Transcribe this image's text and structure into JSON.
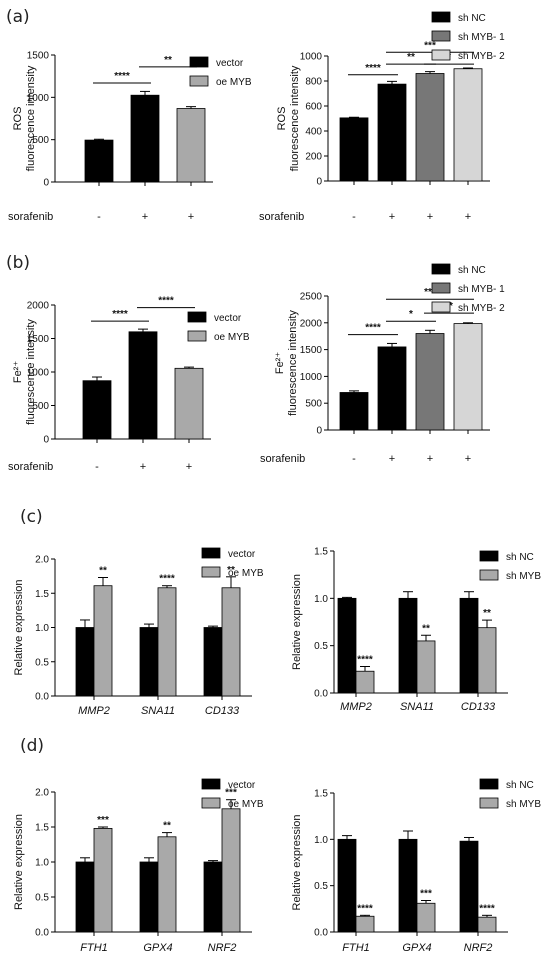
{
  "panels": [
    {
      "letter": "(a)"
    },
    {
      "letter": "(b)"
    },
    {
      "letter": "(c)"
    },
    {
      "letter": "(d)"
    }
  ],
  "chart_data": [
    {
      "id": "a-left",
      "type": "bar",
      "panel": "(a)",
      "ylabel_lines": [
        "ROS",
        "fluorescence intensity"
      ],
      "ylim": [
        0,
        1500
      ],
      "yticks": [
        0,
        500,
        1000,
        1500
      ],
      "treatment_label": "sorafenib",
      "treatment_signs": [
        "-",
        "+",
        "+"
      ],
      "bars": [
        {
          "value": 495,
          "err": 10,
          "color": "#000000"
        },
        {
          "value": 1025,
          "err": 45,
          "color": "#000000"
        },
        {
          "value": 868,
          "err": 22,
          "color": "#a9a9a9"
        }
      ],
      "legend": [
        {
          "name": "vector",
          "color": "#000000"
        },
        {
          "name": "oe MYB",
          "color": "#a9a9a9"
        }
      ],
      "sig": [
        {
          "a": 0,
          "b": 1,
          "label": "****",
          "level": 1170
        },
        {
          "a": 1,
          "b": 2,
          "label": "**",
          "level": 1360
        }
      ]
    },
    {
      "id": "a-right",
      "type": "bar",
      "panel": "(a)",
      "ylabel_lines": [
        "ROS",
        "fluorescence intensity"
      ],
      "ylim": [
        0,
        1000
      ],
      "yticks": [
        0,
        200,
        400,
        600,
        800,
        1000
      ],
      "treatment_label": "sorafenib",
      "treatment_signs": [
        "-",
        "+",
        "+",
        "+"
      ],
      "bars": [
        {
          "value": 505,
          "err": 5,
          "color": "#000000"
        },
        {
          "value": 775,
          "err": 22,
          "color": "#000000"
        },
        {
          "value": 860,
          "err": 15,
          "color": "#777777"
        },
        {
          "value": 898,
          "err": 6,
          "color": "#d6d6d6"
        }
      ],
      "legend": [
        {
          "name": "sh NC",
          "color": "#000000"
        },
        {
          "name": "sh MYB- 1",
          "color": "#777777"
        },
        {
          "name": "sh MYB- 2",
          "color": "#d6d6d6"
        }
      ],
      "sig": [
        {
          "a": 0,
          "b": 1,
          "label": "****",
          "level": 850
        },
        {
          "a": 1,
          "b": 2,
          "label": "**",
          "level": 935
        },
        {
          "a": 2,
          "b": 3,
          "label": "*",
          "level": 935
        },
        {
          "a": 1,
          "b": 3,
          "label": "***",
          "level": 1030
        }
      ]
    },
    {
      "id": "b-left",
      "type": "bar",
      "panel": "(b)",
      "ylabel_lines": [
        "Fe²⁺",
        "fluorescence intensity"
      ],
      "ylim": [
        0,
        2000
      ],
      "yticks": [
        0,
        500,
        1000,
        1500,
        2000
      ],
      "treatment_label": "sorafenib",
      "treatment_signs": [
        "-",
        "+",
        "+"
      ],
      "bars": [
        {
          "value": 870,
          "err": 55,
          "color": "#000000"
        },
        {
          "value": 1600,
          "err": 40,
          "color": "#000000"
        },
        {
          "value": 1055,
          "err": 18,
          "color": "#a9a9a9"
        }
      ],
      "legend": [
        {
          "name": "vector",
          "color": "#000000"
        },
        {
          "name": "oe MYB",
          "color": "#a9a9a9"
        }
      ],
      "sig": [
        {
          "a": 0,
          "b": 1,
          "label": "****",
          "level": 1760
        },
        {
          "a": 1,
          "b": 2,
          "label": "****",
          "level": 1960
        }
      ]
    },
    {
      "id": "b-right",
      "type": "bar",
      "panel": "(b)",
      "ylabel_lines": [
        "Fe²⁺",
        "fluorescence intensity"
      ],
      "ylim": [
        0,
        2500
      ],
      "yticks": [
        0,
        500,
        1000,
        1500,
        2000,
        2500
      ],
      "treatment_label": "sorafenib",
      "treatment_signs": [
        "-",
        "+",
        "+",
        "+"
      ],
      "bars": [
        {
          "value": 700,
          "err": 30,
          "color": "#000000"
        },
        {
          "value": 1550,
          "err": 65,
          "color": "#000000"
        },
        {
          "value": 1800,
          "err": 60,
          "color": "#777777"
        },
        {
          "value": 1985,
          "err": 15,
          "color": "#d6d6d6"
        }
      ],
      "legend": [
        {
          "name": "sh NC",
          "color": "#000000"
        },
        {
          "name": "sh MYB- 1",
          "color": "#777777"
        },
        {
          "name": "sh MYB- 2",
          "color": "#d6d6d6"
        }
      ],
      "sig": [
        {
          "a": 0,
          "b": 1,
          "label": "****",
          "level": 1780
        },
        {
          "a": 1,
          "b": 2,
          "label": "*",
          "level": 2030
        },
        {
          "a": 2,
          "b": 3,
          "label": "**",
          "level": 2180
        },
        {
          "a": 1,
          "b": 3,
          "label": "***",
          "level": 2440
        }
      ]
    },
    {
      "id": "c-left",
      "type": "bar",
      "panel": "(c)",
      "ylabel": "Relative expression",
      "ylim": [
        0,
        2.0
      ],
      "yticks": [
        "0.0",
        "0.5",
        "1.0",
        "1.5",
        "2.0"
      ],
      "categories": [
        "MMP2",
        "SNA11",
        "CD133"
      ],
      "series": [
        {
          "name": "vector",
          "color": "#000000",
          "values": [
            1.0,
            1.0,
            1.0
          ],
          "err": [
            0.11,
            0.05,
            0.02
          ]
        },
        {
          "name": "oe MYB",
          "color": "#a9a9a9",
          "values": [
            1.61,
            1.58,
            1.58
          ],
          "err": [
            0.12,
            0.03,
            0.16
          ]
        }
      ],
      "sig": [
        "**",
        "****",
        "**"
      ]
    },
    {
      "id": "c-right",
      "type": "bar",
      "panel": "(c)",
      "ylabel": "Relative expression",
      "ylim": [
        0,
        1.5
      ],
      "yticks": [
        "0.0",
        "0.5",
        "1.0",
        "1.5"
      ],
      "categories": [
        "MMP2",
        "SNA11",
        "CD133"
      ],
      "series": [
        {
          "name": "sh NC",
          "color": "#000000",
          "values": [
            1.0,
            1.0,
            1.0
          ],
          "err": [
            0.01,
            0.07,
            0.07
          ]
        },
        {
          "name": "sh MYB",
          "color": "#a9a9a9",
          "values": [
            0.23,
            0.55,
            0.69
          ],
          "err": [
            0.05,
            0.06,
            0.08
          ]
        }
      ],
      "sig": [
        "****",
        "**",
        "**"
      ]
    },
    {
      "id": "d-left",
      "type": "bar",
      "panel": "(d)",
      "ylabel": "Relative expression",
      "ylim": [
        0,
        2.0
      ],
      "yticks": [
        "0.0",
        "0.5",
        "1.0",
        "1.5",
        "2.0"
      ],
      "categories": [
        "FTH1",
        "GPX4",
        "NRF2"
      ],
      "series": [
        {
          "name": "vector",
          "color": "#000000",
          "values": [
            1.0,
            1.0,
            1.0
          ],
          "err": [
            0.06,
            0.06,
            0.02
          ]
        },
        {
          "name": "oe MYB",
          "color": "#a9a9a9",
          "values": [
            1.48,
            1.36,
            1.76
          ],
          "err": [
            0.02,
            0.06,
            0.13
          ]
        }
      ],
      "sig": [
        "***",
        "**",
        "***"
      ]
    },
    {
      "id": "d-right",
      "type": "bar",
      "panel": "(d)",
      "ylabel": "Relative expression",
      "ylim": [
        0,
        1.5
      ],
      "yticks": [
        "0.0",
        "0.5",
        "1.0",
        "1.5"
      ],
      "categories": [
        "FTH1",
        "GPX4",
        "NRF2"
      ],
      "series": [
        {
          "name": "sh NC",
          "color": "#000000",
          "values": [
            1.0,
            1.0,
            0.98
          ],
          "err": [
            0.04,
            0.09,
            0.04
          ]
        },
        {
          "name": "sh MYB",
          "color": "#a9a9a9",
          "values": [
            0.17,
            0.31,
            0.16
          ],
          "err": [
            0.01,
            0.03,
            0.02
          ]
        }
      ],
      "sig": [
        "****",
        "***",
        "****"
      ]
    }
  ]
}
